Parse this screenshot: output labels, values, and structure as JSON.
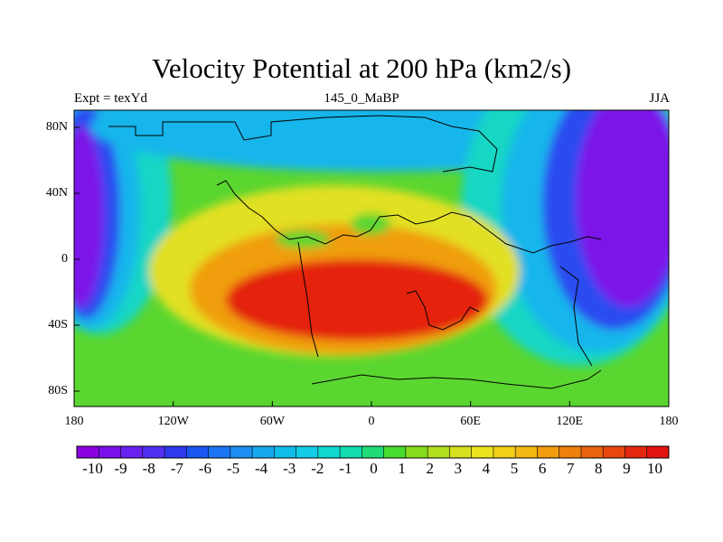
{
  "title": "Velocity Potential at 200 hPa (km2/s)",
  "left_string": "Expt = texYd",
  "center_string": "145_0_MaBP",
  "right_string": "JJA",
  "lat_ticks": [
    "80N",
    "40N",
    "0",
    "40S",
    "80S"
  ],
  "lon_ticks": [
    "180",
    "120W",
    "60W",
    "0",
    "60E",
    "120E",
    "180"
  ],
  "colorbar": {
    "labels": [
      "-10",
      "-9",
      "-8",
      "-7",
      "-6",
      "-5",
      "-4",
      "-3",
      "-2",
      "-1",
      "0",
      "1",
      "2",
      "3",
      "4",
      "5",
      "6",
      "7",
      "8",
      "9",
      "10"
    ],
    "colors": [
      "#8a00e0",
      "#7a10ea",
      "#6a22f0",
      "#5030f2",
      "#2e38ee",
      "#1a56f2",
      "#1b74f4",
      "#1a8ef2",
      "#17a8ee",
      "#10bcea",
      "#12cce6",
      "#10d8d0",
      "#12dcb0",
      "#20dc78",
      "#48dc30",
      "#86dc1c",
      "#b2de1e",
      "#d6e020",
      "#ece21e",
      "#f2d018",
      "#f4b812",
      "#f29c0e",
      "#ee800c",
      "#ea620c",
      "#e8460e",
      "#e42810",
      "#e21410"
    ]
  },
  "map": {
    "colors": {
      "violet": "#7c18e8",
      "blue": "#2c4cf0",
      "cyan": "#18b6ec",
      "teal": "#14d6c4",
      "green": "#5ad630",
      "yellow": "#e2e020",
      "orange": "#f09e10",
      "red": "#e42010"
    }
  }
}
